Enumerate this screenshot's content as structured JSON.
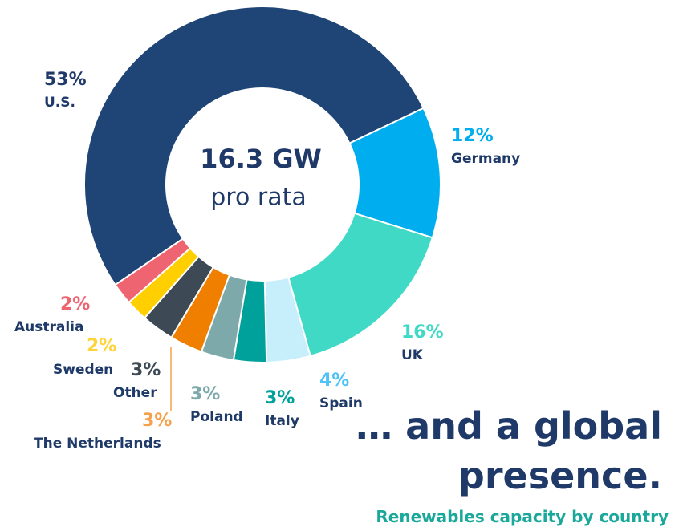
{
  "chart_data": {
    "type": "donut",
    "title": "… and a global presence.",
    "subtitle": "Renewables capacity by country",
    "center_label": "16.3 GW",
    "center_sublabel": "pro rata",
    "categories": [
      "U.S.",
      "Germany",
      "UK",
      "Spain",
      "Italy",
      "Poland",
      "The Netherlands",
      "Other",
      "Sweden",
      "Australia"
    ],
    "values": [
      53,
      12,
      16,
      4,
      3,
      3,
      3,
      3,
      2,
      2
    ],
    "value_labels": [
      "53%",
      "12%",
      "16%",
      "4%",
      "3%",
      "3%",
      "3%",
      "3%",
      "2%",
      "2%"
    ],
    "colors": [
      "#1f4476",
      "#00aeef",
      "#40d9c5",
      "#c6effb",
      "#00a19a",
      "#7ea9ab",
      "#f07f00",
      "#3d4a55",
      "#ffcf00",
      "#ee6470"
    ]
  }
}
